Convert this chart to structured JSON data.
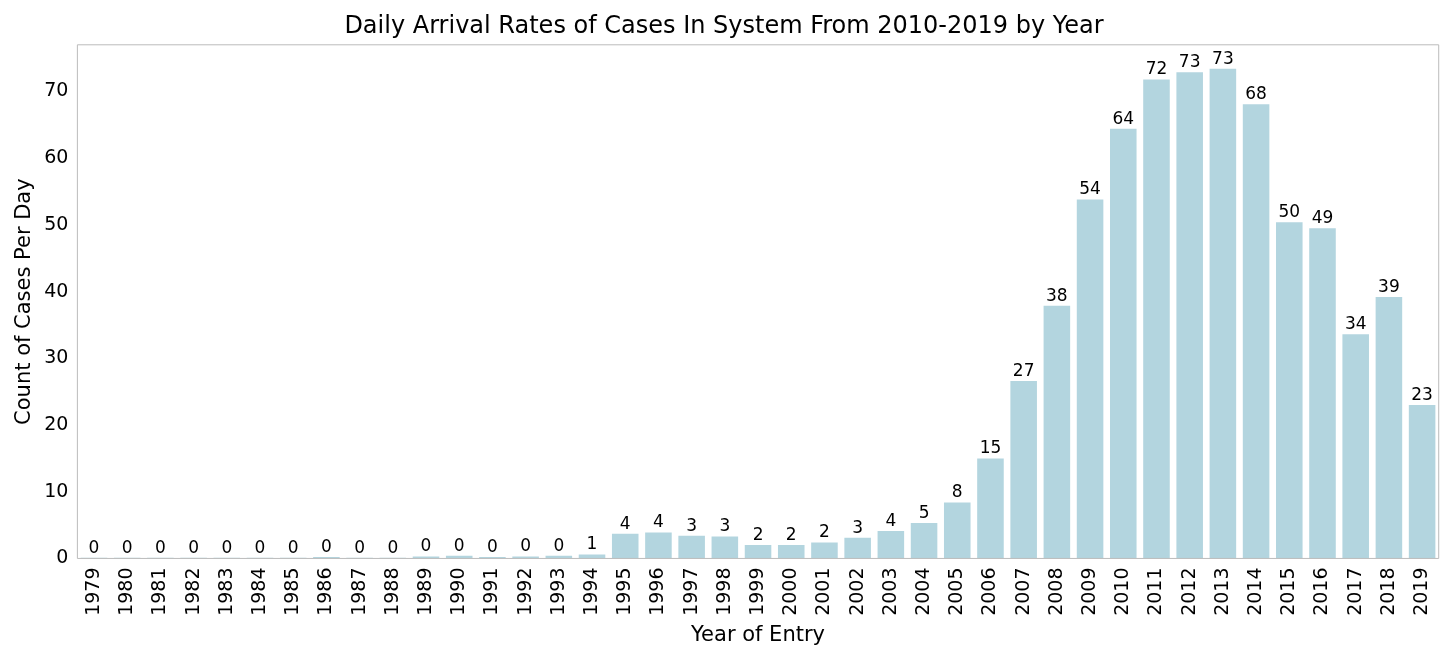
{
  "chart_data": {
    "type": "bar",
    "title": "Daily Arrival Rates of Cases In System From 2010-2019 by Year",
    "xlabel": "Year of Entry",
    "ylabel": "Count of Cases Per Day",
    "categories": [
      "1979",
      "1980",
      "1981",
      "1982",
      "1983",
      "1984",
      "1985",
      "1986",
      "1987",
      "1988",
      "1989",
      "1990",
      "1991",
      "1992",
      "1993",
      "1994",
      "1995",
      "1996",
      "1997",
      "1998",
      "1999",
      "2000",
      "2001",
      "2002",
      "2003",
      "2004",
      "2005",
      "2006",
      "2007",
      "2008",
      "2009",
      "2010",
      "2011",
      "2012",
      "2013",
      "2014",
      "2015",
      "2016",
      "2017",
      "2018",
      "2019"
    ],
    "values": [
      0.1,
      0.1,
      0.1,
      0.1,
      0.1,
      0.1,
      0.1,
      0.2,
      0.1,
      0.1,
      0.3,
      0.4,
      0.2,
      0.3,
      0.4,
      0.6,
      3.7,
      3.9,
      3.4,
      3.3,
      2.0,
      2.0,
      2.4,
      3.1,
      4.1,
      5.3,
      8.4,
      15.0,
      26.6,
      37.9,
      53.8,
      64.4,
      71.8,
      72.9,
      73.4,
      68.1,
      50.4,
      49.5,
      33.6,
      39.2,
      23.0
    ],
    "value_labels": [
      "0",
      "0",
      "0",
      "0",
      "0",
      "0",
      "0",
      "0",
      "0",
      "0",
      "0",
      "0",
      "0",
      "0",
      "0",
      "1",
      "4",
      "4",
      "3",
      "3",
      "2",
      "2",
      "2",
      "3",
      "4",
      "5",
      "8",
      "15",
      "27",
      "38",
      "54",
      "64",
      "72",
      "73",
      "73",
      "68",
      "50",
      "49",
      "34",
      "39",
      "23"
    ],
    "color": "#b3d5df",
    "ylim": [
      0,
      77
    ],
    "yticks": [
      0,
      10,
      20,
      30,
      40,
      50,
      60,
      70
    ],
    "grid": false,
    "legend": false
  }
}
